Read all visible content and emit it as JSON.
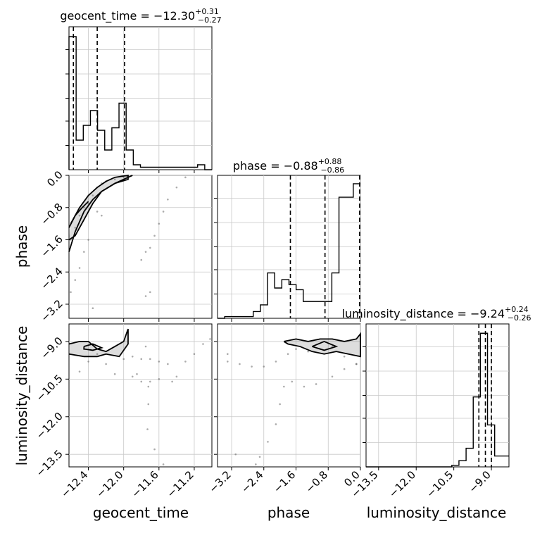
{
  "chart_data": {
    "type": "corner",
    "parameters": [
      "geocent_time",
      "phase",
      "luminosity_distance"
    ],
    "titles": [
      {
        "param": "geocent_time",
        "prefix": "geocent_time = ",
        "median": "−12.30",
        "plus": "+0.31",
        "minus": "−0.27"
      },
      {
        "param": "phase",
        "prefix": "phase = ",
        "median": "−0.88",
        "plus": "+0.88",
        "minus": "−0.86"
      },
      {
        "param": "luminosity_distance",
        "prefix": "luminosity_distance = ",
        "median": "−9.24",
        "plus": "+0.24",
        "minus": "−0.26"
      }
    ],
    "axes": {
      "geocent_time": {
        "label": "geocent_time",
        "range": [
          -12.62,
          -11.0
        ],
        "ticks": [
          -12.4,
          -12.0,
          -11.6,
          -11.2
        ],
        "tick_labels": [
          "−12.4",
          "−12.0",
          "−11.6",
          "−11.2"
        ]
      },
      "phase": {
        "label": "phase",
        "range": [
          -3.55,
          0.0
        ],
        "ticks": [
          -3.2,
          -2.4,
          -1.6,
          -0.8,
          0.0
        ],
        "tick_labels": [
          "−3.2",
          "−2.4",
          "−1.6",
          "−0.8",
          "0.0"
        ]
      },
      "luminosity_distance": {
        "label": "luminosity_distance",
        "range": [
          -14.0,
          -8.3
        ],
        "ticks": [
          -13.5,
          -12.0,
          -10.5,
          -9.0
        ],
        "tick_labels": [
          "−13.5",
          "−12.0",
          "−10.5",
          "−9.0"
        ]
      }
    },
    "quantiles": {
      "geocent_time": [
        -12.57,
        -12.3,
        -11.99
      ],
      "phase": [
        -1.74,
        -0.88,
        -0.02
      ],
      "luminosity_distance": [
        -9.5,
        -9.24,
        -9.0
      ]
    },
    "histograms": {
      "geocent_time": {
        "edges": [
          -12.62,
          -12.539,
          -12.458,
          -12.377,
          -12.296,
          -12.215,
          -12.134,
          -12.053,
          -11.972,
          -11.891,
          -11.81,
          -11.729,
          -11.648,
          -11.567,
          -11.486,
          -11.405,
          -11.324,
          -11.243,
          -11.162,
          -11.081,
          -11.0
        ],
        "counts": [
          54,
          12,
          18,
          24,
          16,
          8,
          17,
          27,
          8,
          2,
          1,
          1,
          1,
          1,
          1,
          1,
          1,
          1,
          2,
          0
        ],
        "ymax": 58
      },
      "phase": {
        "edges": [
          -3.55,
          -3.3725,
          -3.195,
          -3.0175,
          -2.84,
          -2.6625,
          -2.485,
          -2.3075,
          -2.13,
          -1.9525,
          -1.775,
          -1.5975,
          -1.42,
          -1.2425,
          -1.065,
          -0.8875,
          -0.71,
          -0.5325,
          -0.355,
          -0.1775,
          0.0
        ],
        "counts": [
          0,
          1,
          1,
          1,
          1,
          4,
          8,
          27,
          18,
          23,
          20,
          17,
          10,
          10,
          10,
          10,
          27,
          72,
          72,
          80
        ],
        "ymax": 85
      },
      "luminosity_distance": {
        "edges": [
          -14.0,
          -13.715,
          -13.43,
          -13.145,
          -12.86,
          -12.575,
          -12.29,
          -12.005,
          -11.72,
          -11.435,
          -11.15,
          -10.865,
          -10.58,
          -10.295,
          -10.01,
          -9.725,
          -9.44,
          -9.155,
          -8.87,
          -8.585,
          -8.3
        ],
        "counts": [
          0,
          0,
          0,
          0,
          0,
          0,
          0,
          0,
          0,
          0,
          0,
          0,
          1,
          4,
          12,
          45,
          86,
          27,
          7,
          7
        ],
        "ymax": 92
      }
    },
    "scatter": {
      "phase_vs_geocent_time": [
        [
          -12.6,
          -1.6
        ],
        [
          -12.55,
          -1.3
        ],
        [
          -12.5,
          -1.0
        ],
        [
          -12.45,
          -0.8
        ],
        [
          -12.4,
          -0.7
        ],
        [
          -12.35,
          -0.5
        ],
        [
          -12.3,
          -0.3
        ],
        [
          -12.25,
          -0.2
        ],
        [
          -12.2,
          -0.15
        ],
        [
          -12.1,
          -0.1
        ],
        [
          -12.0,
          -0.05
        ],
        [
          -12.3,
          -0.9
        ],
        [
          -12.25,
          -1.0
        ],
        [
          -12.4,
          -1.6
        ],
        [
          -12.45,
          -1.9
        ],
        [
          -12.5,
          -2.3
        ],
        [
          -12.55,
          -2.6
        ],
        [
          -12.6,
          -2.9
        ],
        [
          -11.7,
          -1.8
        ],
        [
          -11.65,
          -1.5
        ],
        [
          -11.6,
          -1.2
        ],
        [
          -11.55,
          -0.9
        ],
        [
          -11.5,
          -0.6
        ],
        [
          -11.4,
          -0.3
        ],
        [
          -11.3,
          -0.05
        ],
        [
          -11.75,
          -1.9
        ],
        [
          -11.8,
          -2.1
        ],
        [
          -11.7,
          -2.9
        ],
        [
          -11.75,
          -3.0
        ],
        [
          -12.35,
          -3.3
        ]
      ],
      "luminosity_distance_vs_geocent_time": [
        [
          -12.45,
          -9.3
        ],
        [
          -12.4,
          -9.8
        ],
        [
          -12.3,
          -9.5
        ],
        [
          -12.2,
          -9.9
        ],
        [
          -12.1,
          -10.3
        ],
        [
          -12.0,
          -9.7
        ],
        [
          -11.9,
          -9.6
        ],
        [
          -11.8,
          -9.7
        ],
        [
          -11.7,
          -9.7
        ],
        [
          -11.6,
          -9.8
        ],
        [
          -11.5,
          -9.9
        ],
        [
          -11.45,
          -10.6
        ],
        [
          -11.4,
          -10.4
        ],
        [
          -11.3,
          -9.8
        ],
        [
          -11.2,
          -9.5
        ],
        [
          -11.1,
          -9.1
        ],
        [
          -11.02,
          -8.9
        ],
        [
          -11.6,
          -10.5
        ],
        [
          -11.7,
          -10.6
        ],
        [
          -11.8,
          -10.6
        ],
        [
          -11.85,
          -10.3
        ],
        [
          -11.75,
          -9.2
        ],
        [
          -11.72,
          -10.8
        ],
        [
          -11.72,
          -11.5
        ],
        [
          -11.73,
          -12.5
        ],
        [
          -11.65,
          -13.3
        ],
        [
          -11.55,
          -13.9
        ],
        [
          -11.9,
          -10.4
        ],
        [
          -12.5,
          -10.2
        ]
      ],
      "luminosity_distance_vs_phase": [
        [
          -3.3,
          -9.8
        ],
        [
          -3.0,
          -9.9
        ],
        [
          -2.7,
          -10.0
        ],
        [
          -2.4,
          -10.0
        ],
        [
          -2.1,
          -9.8
        ],
        [
          -1.8,
          -9.5
        ],
        [
          -1.6,
          -9.3
        ],
        [
          -1.3,
          -9.4
        ],
        [
          -1.0,
          -9.3
        ],
        [
          -0.7,
          -9.2
        ],
        [
          -0.4,
          -9.6
        ],
        [
          -0.1,
          -9.9
        ],
        [
          -1.7,
          -10.6
        ],
        [
          -1.4,
          -10.8
        ],
        [
          -1.1,
          -10.7
        ],
        [
          -0.7,
          -10.4
        ],
        [
          -0.4,
          -10.1
        ],
        [
          -0.1,
          -9.9
        ],
        [
          -1.9,
          -10.8
        ],
        [
          -2.0,
          -11.5
        ],
        [
          -2.1,
          -12.3
        ],
        [
          -2.3,
          -13.0
        ],
        [
          -2.5,
          -13.6
        ],
        [
          -2.6,
          -13.9
        ],
        [
          -3.1,
          -13.5
        ],
        [
          -3.3,
          -9.5
        ]
      ]
    },
    "contours": {
      "phase_vs_geocent_time": [
        [
          [
            -12.6,
            -1.2
          ],
          [
            -12.5,
            -0.8
          ],
          [
            -12.4,
            -0.5
          ],
          [
            -12.3,
            -0.3
          ],
          [
            -12.2,
            -0.15
          ],
          [
            -12.1,
            -0.05
          ],
          [
            -11.95,
            0.0
          ],
          [
            -11.95,
            -0.1
          ],
          [
            -12.1,
            -0.2
          ],
          [
            -12.25,
            -0.4
          ],
          [
            -12.35,
            -0.7
          ],
          [
            -12.45,
            -1.1
          ],
          [
            -12.55,
            -1.5
          ],
          [
            -12.62,
            -1.6
          ]
        ],
        [
          [
            -12.62,
            -1.9
          ],
          [
            -12.55,
            -1.4
          ],
          [
            -12.45,
            -0.9
          ],
          [
            -12.35,
            -0.6
          ],
          [
            -12.25,
            -0.4
          ],
          [
            -12.1,
            -0.2
          ],
          [
            -11.95,
            -0.05
          ],
          [
            -11.9,
            0.0
          ]
        ],
        [
          [
            -12.62,
            -1.3
          ],
          [
            -12.55,
            -1.0
          ],
          [
            -12.47,
            -0.8
          ],
          [
            -12.4,
            -0.65
          ]
        ]
      ],
      "luminosity_distance_vs_geocent_time": [
        [
          [
            -12.62,
            -9.1
          ],
          [
            -12.5,
            -9.0
          ],
          [
            -12.4,
            -9.0
          ],
          [
            -12.3,
            -9.3
          ],
          [
            -12.2,
            -9.4
          ],
          [
            -12.1,
            -9.2
          ],
          [
            -12.0,
            -9.0
          ],
          [
            -11.95,
            -8.5
          ],
          [
            -11.95,
            -9.1
          ],
          [
            -12.05,
            -9.6
          ],
          [
            -12.2,
            -9.5
          ],
          [
            -12.3,
            -9.6
          ],
          [
            -12.45,
            -9.6
          ],
          [
            -12.62,
            -9.5
          ]
        ],
        [
          [
            -12.45,
            -9.2
          ],
          [
            -12.35,
            -9.1
          ],
          [
            -12.25,
            -9.25
          ],
          [
            -12.35,
            -9.35
          ],
          [
            -12.45,
            -9.3
          ],
          [
            -12.45,
            -9.2
          ]
        ]
      ],
      "luminosity_distance_vs_phase": [
        [
          [
            -1.9,
            -9.0
          ],
          [
            -1.6,
            -8.9
          ],
          [
            -1.3,
            -9.0
          ],
          [
            -1.0,
            -8.9
          ],
          [
            -0.7,
            -8.9
          ],
          [
            -0.4,
            -9.0
          ],
          [
            -0.1,
            -8.9
          ],
          [
            0.0,
            -8.7
          ],
          [
            0.0,
            -9.6
          ],
          [
            -0.3,
            -9.5
          ],
          [
            -0.6,
            -9.4
          ],
          [
            -0.9,
            -9.5
          ],
          [
            -1.2,
            -9.4
          ],
          [
            -1.5,
            -9.2
          ],
          [
            -1.8,
            -9.1
          ],
          [
            -1.9,
            -9.0
          ]
        ],
        [
          [
            -1.2,
            -9.2
          ],
          [
            -0.9,
            -9.0
          ],
          [
            -0.6,
            -9.2
          ],
          [
            -0.9,
            -9.35
          ],
          [
            -1.2,
            -9.2
          ]
        ]
      ]
    },
    "grid": true
  }
}
